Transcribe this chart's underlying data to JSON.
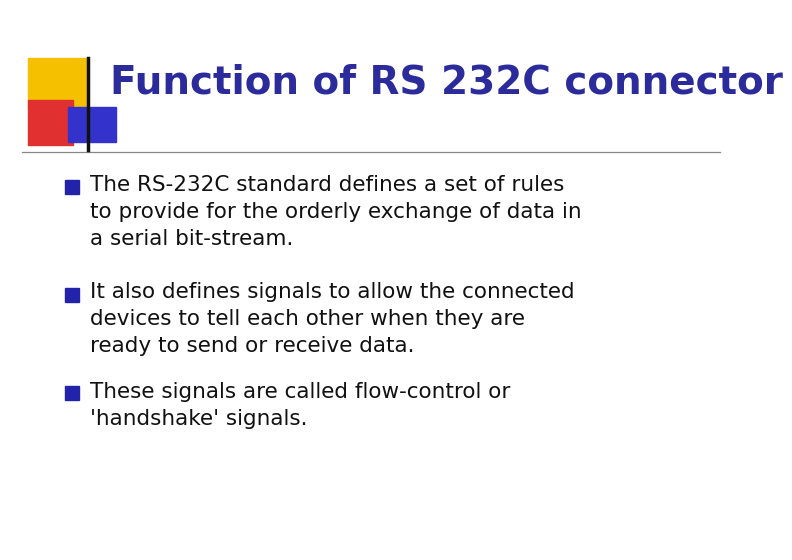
{
  "title": "Function of RS 232C connector",
  "title_color": "#2B2B9B",
  "title_fontsize": 28,
  "background_color": "#FFFFFF",
  "separator_line_color": "#888888",
  "bullet_color": "#111111",
  "bullet_square_color": "#2222AA",
  "bullets": [
    "The RS-232C standard defines a set of rules\nto provide for the orderly exchange of data in\na serial bit-stream.",
    "It also defines signals to allow the connected\ndevices to tell each other when they are\nready to send or receive data.",
    "These signals are called flow-control or\n'handshake' signals."
  ],
  "bullet_fontsize": 15.5,
  "logo_yellow_color": "#F5C000",
  "logo_red_color": "#E03030",
  "logo_blue_color": "#3333CC",
  "logo_line_color": "#111111"
}
